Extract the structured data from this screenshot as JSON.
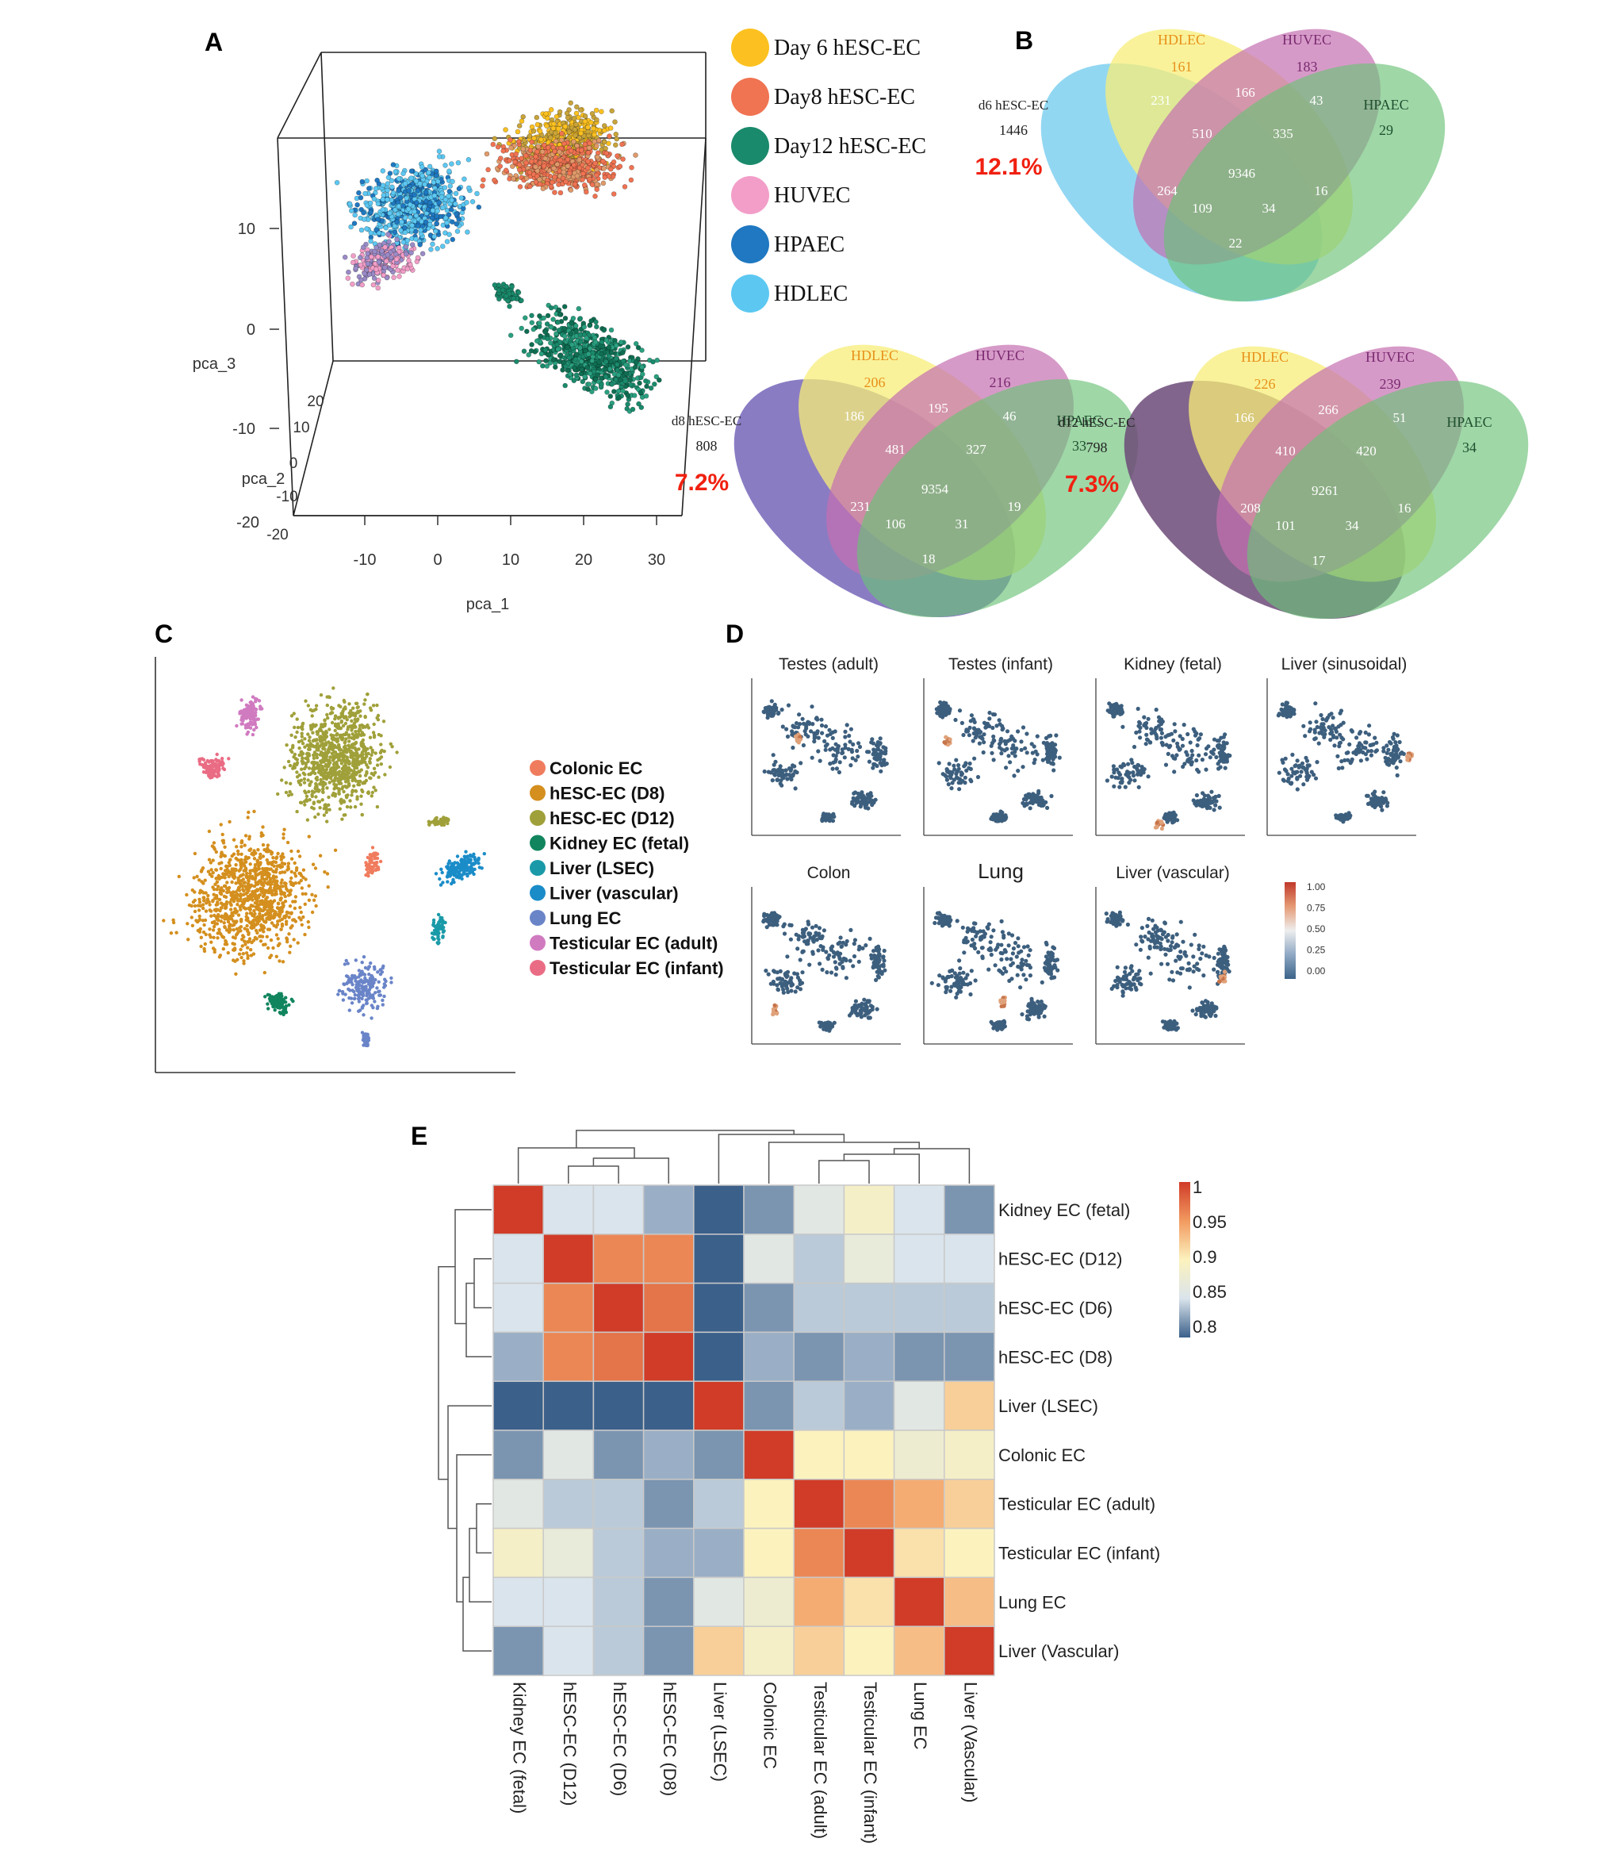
{
  "panels": {
    "a": "A",
    "b": "B",
    "c": "C",
    "d": "D",
    "e": "E"
  },
  "colors": {
    "day6": "#fcc120",
    "day8": "#f07352",
    "day12": "#1a8a6c",
    "huvec": "#f29ec8",
    "hpaec": "#1f78c1",
    "hdlec": "#5cc8f2",
    "ven_d6": "#7fd0f0",
    "ven_d8": "#7565b8",
    "ven_d12": "#6c4a78",
    "ven_hdlec": "#f7ee78",
    "ven_huvec": "#c46fb0",
    "ven_hpaec": "#6cc278",
    "pct_red": "#f02010",
    "hdlec_text": "#e8901a",
    "huvec_text": "#7a2a70",
    "hpaec_text": "#1f4f2f",
    "dark_text": "#222222"
  },
  "pca": {
    "legend": [
      {
        "label": "Day 6 hESC-EC",
        "color": "#fcc120"
      },
      {
        "label": "Day8 hESC-EC",
        "color": "#f07352"
      },
      {
        "label": "Day12 hESC-EC",
        "color": "#1a8a6c"
      },
      {
        "label": "HUVEC",
        "color": "#f29ec8"
      },
      {
        "label": "HPAEC",
        "color": "#1f78c1"
      },
      {
        "label": "HDLEC",
        "color": "#5cc8f2"
      }
    ],
    "x_axis": {
      "label": "pca_1",
      "ticks": [
        "-10",
        "0",
        "10",
        "20",
        "30"
      ]
    },
    "y_axis": {
      "label": "pca_2",
      "ticks": [
        "20",
        "10",
        "0",
        "-10",
        "-20"
      ]
    },
    "z_axis": {
      "label": "pca_3",
      "ticks": [
        "10",
        "0",
        "-10",
        "-20"
      ]
    }
  },
  "venn": [
    {
      "set_label": "d6 hESC-EC",
      "unique": "1446",
      "percent": "12.1%",
      "hdlec_label": "HDLEC",
      "hdlec": "161",
      "huvec_label": "HUVEC",
      "huvec": "183",
      "hpaec_label": "HPAEC",
      "hpaec": "29",
      "d_hdlec": "231",
      "hdlec_huvec": "166",
      "huvec_hpaec": "43",
      "d_hdlec_huvec": "510",
      "hdlec_huvec_hpaec": "335",
      "core": "9346",
      "d_huvec": "264",
      "hdlec_hpaec": "16",
      "d_huvec_hpaec": "109",
      "d_hdlec_hpaec": "34",
      "d_hpaec": "22"
    },
    {
      "set_label": "d8 hESC-EC",
      "unique": "808",
      "percent": "7.2%",
      "hdlec_label": "HDLEC",
      "hdlec": "206",
      "huvec_label": "HUVEC",
      "huvec": "216",
      "hpaec_label": "HPAEC",
      "hpaec": "33",
      "d_hdlec": "186",
      "hdlec_huvec": "195",
      "huvec_hpaec": "46",
      "d_hdlec_huvec": "481",
      "hdlec_huvec_hpaec": "327",
      "core": "9354",
      "d_huvec": "231",
      "hdlec_hpaec": "19",
      "d_huvec_hpaec": "106",
      "d_hdlec_hpaec": "31",
      "d_hpaec": "18"
    },
    {
      "set_label": "d12 hESC-EC",
      "unique": "798",
      "percent": "7.3%",
      "hdlec_label": "HDLEC",
      "hdlec": "226",
      "huvec_label": "HUVEC",
      "huvec": "239",
      "hpaec_label": "HPAEC",
      "hpaec": "34",
      "d_hdlec": "166",
      "hdlec_huvec": "266",
      "huvec_hpaec": "51",
      "d_hdlec_huvec": "410",
      "hdlec_huvec_hpaec": "420",
      "core": "9261",
      "d_huvec": "208",
      "hdlec_hpaec": "16",
      "d_huvec_hpaec": "101",
      "d_hdlec_hpaec": "34",
      "d_hpaec": "17"
    }
  ],
  "tsne_legend": [
    {
      "label": "Colonic EC",
      "color": "#f07c5e"
    },
    {
      "label": "hESC-EC (D8)",
      "color": "#d48f1e"
    },
    {
      "label": "hESC-EC (D12)",
      "color": "#a0a03a"
    },
    {
      "label": "Kidney EC (fetal)",
      "color": "#11855e"
    },
    {
      "label": "Liver (LSEC)",
      "color": "#1a9aa8"
    },
    {
      "label": "Liver (vascular)",
      "color": "#1a8cc8"
    },
    {
      "label": "Lung EC",
      "color": "#6a84c8"
    },
    {
      "label": "Testicular EC (adult)",
      "color": "#d07ac0"
    },
    {
      "label": "Testicular EC (infant)",
      "color": "#ea6c84"
    }
  ],
  "feature_plots": {
    "titles": [
      "Testes (adult)",
      "Testes (infant)",
      "Kidney (fetal)",
      "Liver (sinusoidal)",
      "Colon",
      "Lung",
      "Liver (vascular)"
    ],
    "scale": [
      "1.00",
      "0.75",
      "0.50",
      "0.25",
      "0.00"
    ]
  },
  "heatmap": {
    "rows": [
      "Kidney EC (fetal)",
      "hESC-EC (D12)",
      "hESC-EC (D6)",
      "hESC-EC (D8)",
      "Liver (LSEC)",
      "Colonic EC",
      "Testicular EC (adult)",
      "Testicular EC (infant)",
      "Lung EC",
      "Liver (Vascular)"
    ],
    "columns": [
      "Kidney EC (fetal)",
      "hESC-EC (D12)",
      "hESC-EC (D6)",
      "hESC-EC (D8)",
      "Liver (LSEC)",
      "Colonic EC",
      "Testicular EC (adult)",
      "Testicular EC (infant)",
      "Lung EC",
      "Liver (Vascular)"
    ],
    "values": [
      [
        1.0,
        0.85,
        0.85,
        0.83,
        0.79,
        0.82,
        0.86,
        0.89,
        0.85,
        0.82
      ],
      [
        0.85,
        1.0,
        0.96,
        0.96,
        0.8,
        0.86,
        0.84,
        0.87,
        0.85,
        0.85
      ],
      [
        0.85,
        0.96,
        1.0,
        0.97,
        0.8,
        0.82,
        0.84,
        0.84,
        0.84,
        0.84
      ],
      [
        0.83,
        0.96,
        0.97,
        1.0,
        0.79,
        0.83,
        0.82,
        0.83,
        0.82,
        0.82
      ],
      [
        0.79,
        0.8,
        0.8,
        0.79,
        1.0,
        0.82,
        0.84,
        0.83,
        0.86,
        0.92
      ],
      [
        0.82,
        0.86,
        0.82,
        0.83,
        0.82,
        1.0,
        0.9,
        0.9,
        0.88,
        0.89
      ],
      [
        0.86,
        0.84,
        0.84,
        0.82,
        0.84,
        0.9,
        1.0,
        0.96,
        0.94,
        0.92
      ],
      [
        0.89,
        0.87,
        0.84,
        0.83,
        0.83,
        0.9,
        0.96,
        1.0,
        0.91,
        0.9
      ],
      [
        0.85,
        0.85,
        0.84,
        0.82,
        0.86,
        0.88,
        0.94,
        0.91,
        1.0,
        0.93
      ],
      [
        0.82,
        0.85,
        0.84,
        0.82,
        0.92,
        0.89,
        0.92,
        0.9,
        0.93,
        1.0
      ]
    ],
    "scale_ticks": [
      "1",
      "0.95",
      "0.9",
      "0.85",
      "0.8"
    ]
  }
}
